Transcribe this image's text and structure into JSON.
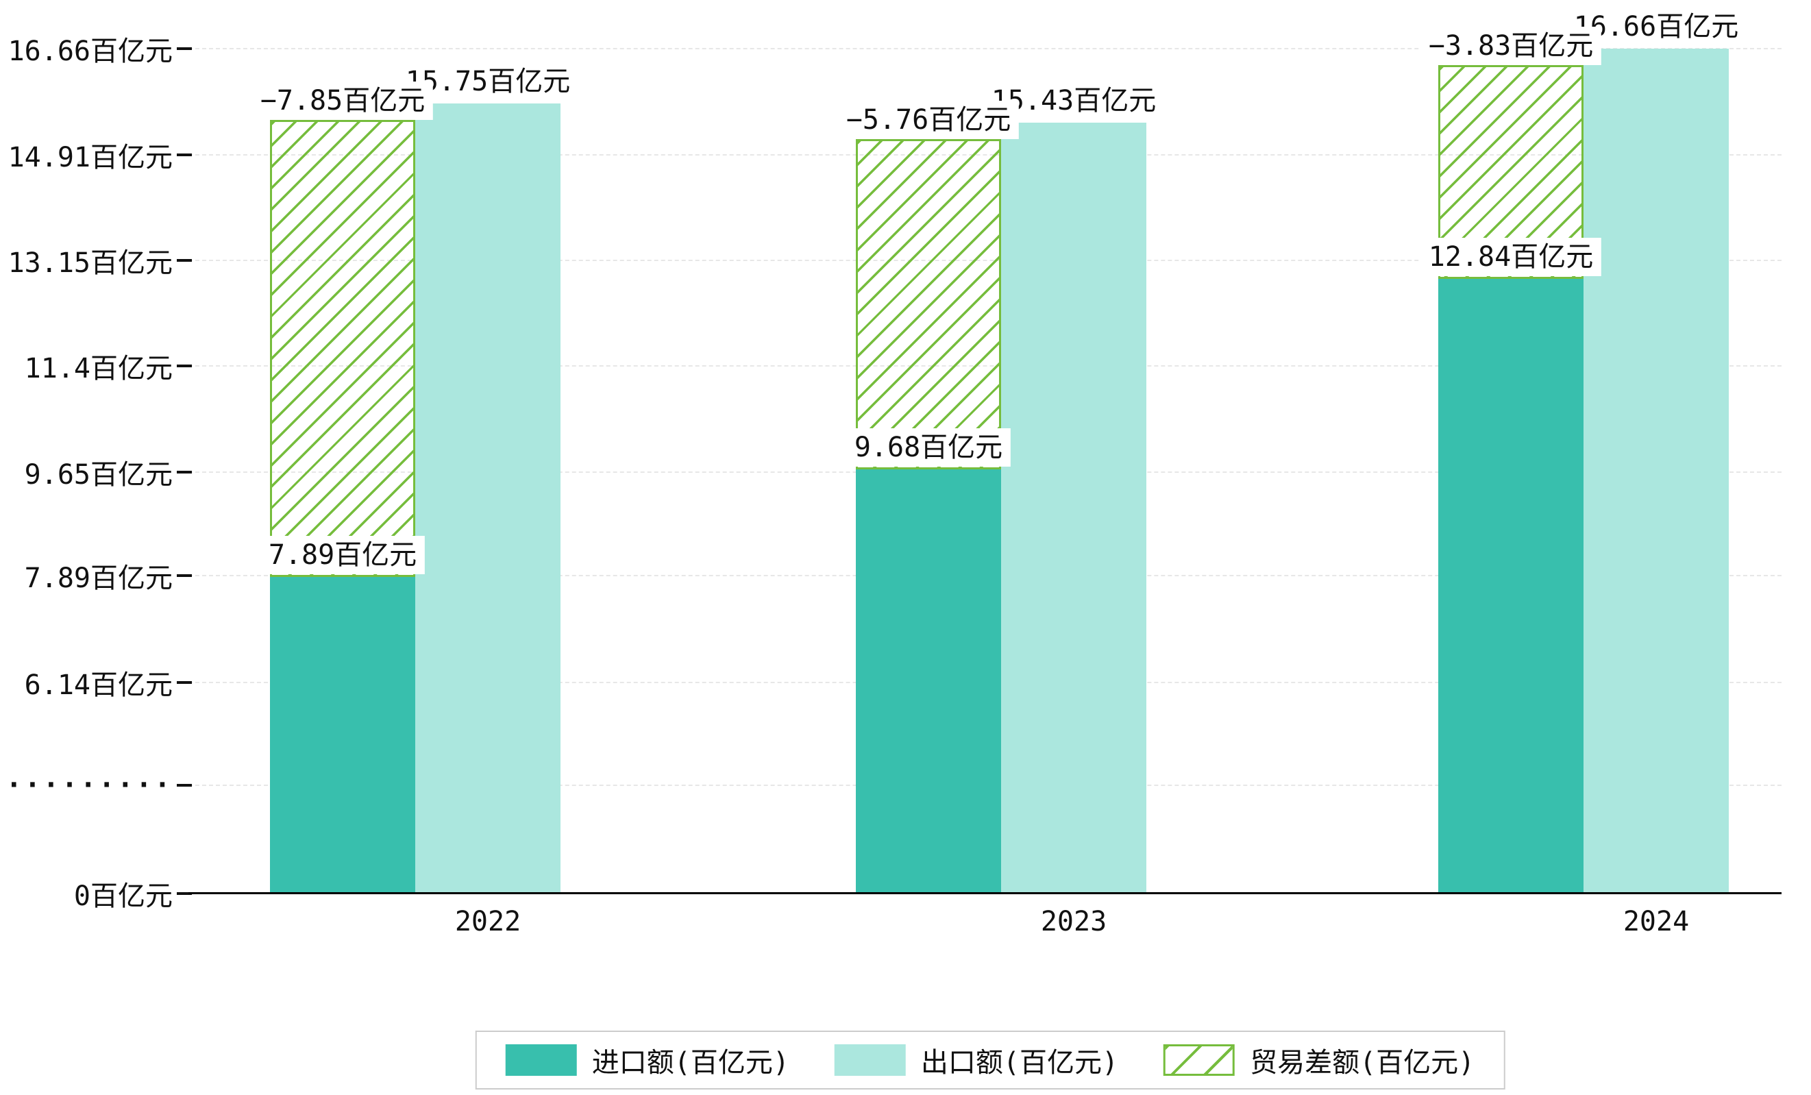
{
  "chart_data": {
    "type": "bar",
    "title": "",
    "categories": [
      "2022",
      "2023",
      "2024"
    ],
    "series": [
      {
        "name": "进口额(百亿元)",
        "values": [
          7.89,
          9.68,
          12.84
        ],
        "labels": [
          "7.89百亿元",
          "9.68百亿元",
          "12.84百亿元"
        ],
        "color": "#38bfad",
        "style": "solid"
      },
      {
        "name": "出口额(百亿元)",
        "values": [
          15.75,
          15.43,
          16.66
        ],
        "labels": [
          "15.75百亿元",
          "15.43百亿元",
          "16.66百亿元"
        ],
        "color": "#abe7de",
        "style": "solid"
      },
      {
        "name": "贸易差额(百亿元)",
        "values": [
          -7.85,
          -5.76,
          -3.83
        ],
        "labels": [
          "−7.85百亿元",
          "−5.76百亿元",
          "−3.83百亿元"
        ],
        "color": "#76bd3d",
        "style": "hatched",
        "note": "floating hatched bar spanning from import value up to export value"
      }
    ],
    "y_axis": {
      "unit": "百亿元",
      "tick_labels": [
        "16.66百亿元",
        "14.91百亿元",
        "13.15百亿元",
        "11.4百亿元",
        "9.65百亿元",
        "7.89百亿元",
        "6.14百亿元",
        "·········",
        "0百亿元"
      ],
      "tick_values": [
        16.66,
        14.91,
        13.15,
        11.4,
        9.65,
        7.89,
        6.14,
        null,
        0
      ],
      "axis_break": true,
      "ylim": [
        0,
        17.2
      ]
    },
    "x_axis": {
      "tick_labels": [
        "2022",
        "2023",
        "2024"
      ]
    },
    "legend": {
      "position": "bottom",
      "entries": [
        "进口额(百亿元)",
        "出口额(百亿元)",
        "贸易差额(百亿元)"
      ]
    },
    "grid": "horizontal-dashed-faint"
  },
  "colors": {
    "background": "#ffffff",
    "axis": "#000000",
    "text": "#111111",
    "import_bar": "#38bfad",
    "export_bar": "#abe7de",
    "balance_hatch": "#76bd3d",
    "legend_border": "#cccccc",
    "gridline": "#e7e7e7"
  }
}
